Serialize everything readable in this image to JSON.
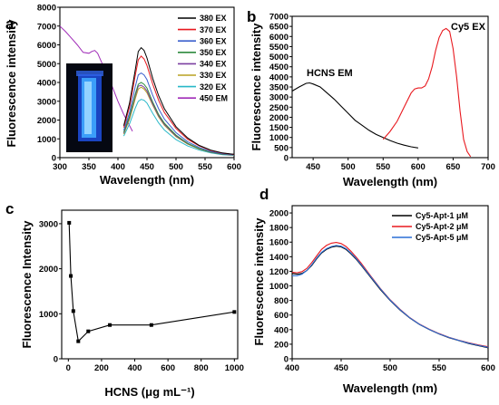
{
  "chart_data": [
    {
      "panel": "a",
      "type": "line",
      "xlabel": "Wavelength (nm)",
      "ylabel": "Fluorescence intensity",
      "xlim": [
        300,
        600
      ],
      "ylim": [
        0,
        8000
      ],
      "xticks": [
        300,
        350,
        400,
        450,
        500,
        550,
        600
      ],
      "yticks": [
        0,
        1000,
        2000,
        3000,
        4000,
        5000,
        6000,
        7000,
        8000
      ],
      "legend_position": "top-right",
      "inset": "photo of vial with blue fluorescence",
      "x": [
        410,
        420,
        430,
        435,
        440,
        445,
        450,
        460,
        470,
        480,
        500,
        520,
        540,
        560,
        580,
        600
      ],
      "series": [
        {
          "name": "380 EX",
          "color": "#000000",
          "values": [
            1700,
            2900,
            4700,
            5650,
            5850,
            5700,
            5300,
            4200,
            3300,
            2600,
            1650,
            1050,
            650,
            400,
            250,
            180
          ]
        },
        {
          "name": "370 EX",
          "color": "#e8181e",
          "values": [
            1600,
            2700,
            4400,
            5200,
            5400,
            5250,
            4900,
            3900,
            3050,
            2400,
            1550,
            980,
            620,
            380,
            240,
            170
          ]
        },
        {
          "name": "360 EX",
          "color": "#3a5fcd",
          "values": [
            1450,
            2400,
            3800,
            4400,
            4500,
            4400,
            4150,
            3300,
            2600,
            2050,
            1330,
            850,
            540,
            330,
            210,
            150
          ]
        },
        {
          "name": "350 EX",
          "color": "#2e8b3e",
          "values": [
            1350,
            2200,
            3400,
            3900,
            4000,
            3900,
            3700,
            2950,
            2300,
            1830,
            1200,
            760,
            480,
            300,
            190,
            140
          ]
        },
        {
          "name": "340 EX",
          "color": "#7b3fa0",
          "values": [
            1300,
            2150,
            3300,
            3800,
            3850,
            3750,
            3550,
            2850,
            2230,
            1770,
            1150,
            740,
            470,
            290,
            185,
            135
          ]
        },
        {
          "name": "330 EX",
          "color": "#b9a020",
          "values": [
            1250,
            2050,
            3150,
            3650,
            3750,
            3650,
            3450,
            2780,
            2170,
            1720,
            1120,
            720,
            460,
            285,
            180,
            130
          ]
        },
        {
          "name": "320 EX",
          "color": "#28b8c8",
          "values": [
            1150,
            1800,
            2650,
            3000,
            3100,
            3050,
            2900,
            2350,
            1850,
            1470,
            960,
            620,
            400,
            250,
            160,
            120
          ]
        }
      ],
      "em_series": {
        "name": "450 EM",
        "color": "#a02cb8",
        "x": [
          300,
          310,
          320,
          330,
          340,
          350,
          355,
          360,
          365,
          370,
          380,
          390,
          400,
          410,
          420,
          425
        ],
        "values": [
          7000,
          6700,
          6350,
          6000,
          5600,
          5550,
          5650,
          5700,
          5550,
          5200,
          4500,
          3800,
          3000,
          2300,
          1700,
          1400
        ]
      }
    },
    {
      "panel": "b",
      "type": "line",
      "xlabel": "Wavelength (nm)",
      "ylabel": "Fluorescence intensity",
      "xlim": [
        420,
        700
      ],
      "ylim": [
        0,
        7000
      ],
      "xticks": [
        450,
        500,
        550,
        600,
        650,
        700
      ],
      "yticks": [
        0,
        500,
        1000,
        1500,
        2000,
        2500,
        3000,
        3500,
        4000,
        4500,
        5000,
        5500,
        6000,
        6500,
        7000
      ],
      "annotations": [
        "HCNS EM",
        "Cy5 EX"
      ],
      "series": [
        {
          "name": "HCNS EM",
          "color": "#000000",
          "x": [
            420,
            430,
            440,
            445,
            450,
            460,
            470,
            480,
            490,
            500,
            510,
            520,
            530,
            540,
            550,
            560,
            570,
            580,
            590,
            600
          ],
          "values": [
            3300,
            3500,
            3680,
            3700,
            3650,
            3500,
            3200,
            2900,
            2550,
            2200,
            1850,
            1600,
            1350,
            1150,
            1000,
            850,
            720,
            620,
            540,
            480
          ]
        },
        {
          "name": "Cy5 EX",
          "color": "#e8181e",
          "x": [
            550,
            560,
            570,
            580,
            590,
            595,
            600,
            605,
            610,
            615,
            620,
            625,
            630,
            635,
            640,
            645,
            650,
            655,
            660,
            665,
            670,
            675
          ],
          "values": [
            900,
            1300,
            1800,
            2500,
            3200,
            3400,
            3450,
            3450,
            3550,
            3900,
            4500,
            5300,
            5950,
            6300,
            6400,
            6250,
            5400,
            4000,
            2300,
            900,
            300,
            50
          ]
        }
      ]
    },
    {
      "panel": "c",
      "type": "line",
      "xlabel": "HCNS (μg mL⁻¹)",
      "ylabel": "Fluorescence Intensity",
      "xlim": [
        -40,
        1020
      ],
      "ylim": [
        0,
        3300
      ],
      "xticks": [
        0,
        200,
        400,
        600,
        800,
        1000
      ],
      "yticks": [
        0,
        1000,
        2000,
        3000
      ],
      "series": [
        {
          "name": "",
          "color": "#000000",
          "x": [
            5,
            15,
            30,
            60,
            120,
            250,
            500,
            1000
          ],
          "values": [
            3020,
            1840,
            1060,
            390,
            610,
            750,
            750,
            1040
          ]
        }
      ]
    },
    {
      "panel": "d",
      "type": "line",
      "xlabel": "Wavelength (nm)",
      "ylabel": "Fluorescence intensity",
      "xlim": [
        400,
        600
      ],
      "ylim": [
        0,
        2100
      ],
      "xticks": [
        400,
        450,
        500,
        550,
        600
      ],
      "yticks": [
        0,
        200,
        400,
        600,
        800,
        1000,
        1200,
        1400,
        1600,
        1800,
        2000
      ],
      "legend_position": "top-right",
      "x": [
        400,
        405,
        410,
        415,
        420,
        425,
        430,
        435,
        440,
        445,
        450,
        455,
        460,
        465,
        470,
        480,
        490,
        500,
        510,
        520,
        530,
        540,
        550,
        560,
        570,
        580,
        590,
        600
      ],
      "series": [
        {
          "name": "Cy5-Apt-1 μM",
          "color": "#000000",
          "values": [
            1170,
            1160,
            1170,
            1210,
            1280,
            1370,
            1450,
            1500,
            1530,
            1545,
            1535,
            1500,
            1440,
            1370,
            1290,
            1120,
            950,
            800,
            670,
            560,
            470,
            400,
            340,
            290,
            250,
            210,
            180,
            150
          ]
        },
        {
          "name": "Cy5-Apt-2 μM",
          "color": "#e8181e",
          "values": [
            1185,
            1180,
            1195,
            1240,
            1320,
            1410,
            1500,
            1555,
            1585,
            1595,
            1580,
            1540,
            1475,
            1400,
            1320,
            1140,
            965,
            810,
            680,
            565,
            475,
            405,
            345,
            295,
            255,
            220,
            190,
            165
          ]
        },
        {
          "name": "Cy5-Apt-5 μM",
          "color": "#2a6fd6",
          "values": [
            1140,
            1140,
            1160,
            1210,
            1290,
            1380,
            1460,
            1510,
            1540,
            1555,
            1545,
            1510,
            1450,
            1380,
            1300,
            1130,
            960,
            805,
            675,
            563,
            472,
            402,
            342,
            293,
            252,
            215,
            185,
            158
          ]
        }
      ]
    }
  ]
}
